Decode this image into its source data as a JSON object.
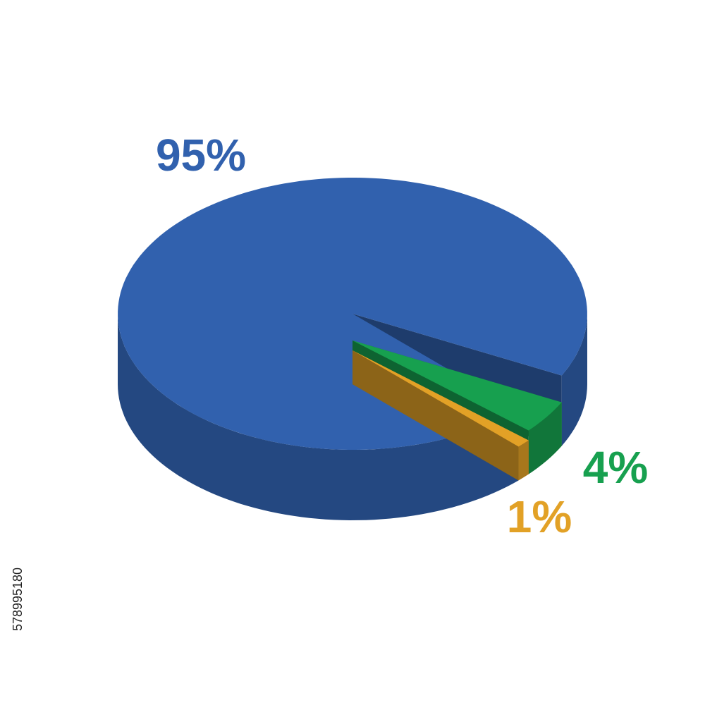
{
  "chart_data": {
    "type": "pie3d",
    "values": [
      95,
      4,
      1
    ],
    "value_labels": [
      "95%",
      "4%",
      "1%"
    ],
    "colors": [
      "#3161ae",
      "#17a04f",
      "#e2a126"
    ],
    "annotations": [
      "578995180"
    ]
  }
}
